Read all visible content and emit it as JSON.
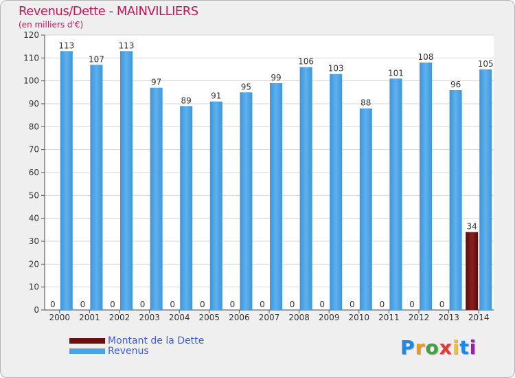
{
  "chart_data": {
    "type": "bar",
    "title": "Revenus/Dette - MAINVILLIERS",
    "subtitle": "(en milliers d'€)",
    "categories": [
      "2000",
      "2001",
      "2002",
      "2003",
      "2004",
      "2005",
      "2006",
      "2007",
      "2008",
      "2009",
      "2010",
      "2011",
      "2012",
      "2013",
      "2014"
    ],
    "series": [
      {
        "name": "Montant de la Dette",
        "color": "#6b0f0f",
        "values": [
          0,
          0,
          0,
          0,
          0,
          0,
          0,
          0,
          0,
          0,
          0,
          0,
          0,
          0,
          34
        ]
      },
      {
        "name": "Revenus",
        "color": "#4aa3e6",
        "values": [
          113,
          107,
          113,
          97,
          89,
          91,
          95,
          99,
          106,
          103,
          88,
          101,
          108,
          96,
          105
        ]
      }
    ],
    "ylim": [
      0,
      120
    ],
    "yticks": [
      0,
      10,
      20,
      30,
      40,
      50,
      60,
      70,
      80,
      90,
      100,
      110,
      120
    ],
    "grid": true,
    "legend_position": "bottom-left"
  },
  "logo": {
    "text": "Proxiti"
  }
}
